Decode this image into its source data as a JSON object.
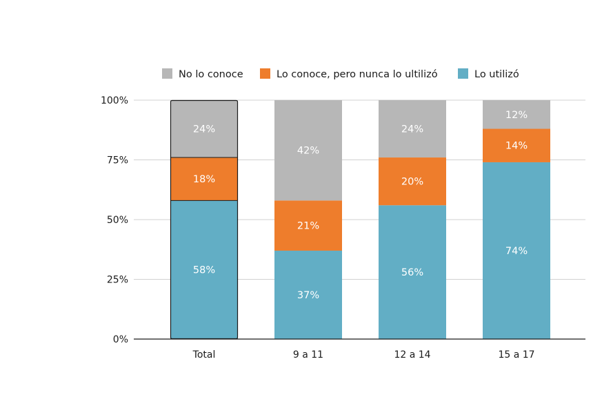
{
  "chart_data": {
    "type": "bar",
    "stacked": true,
    "categories": [
      "Total",
      "9 a 11",
      "12 a 14",
      "15 a 17"
    ],
    "series": [
      {
        "name": "Lo utilizó",
        "color": "#62aec5",
        "values": [
          58,
          37,
          56,
          74
        ],
        "labels": [
          "58%",
          "37%",
          "56%",
          "74%"
        ]
      },
      {
        "name": "Lo conoce, pero nunca lo ultilizó",
        "color": "#ee7d2c",
        "values": [
          18,
          21,
          20,
          14
        ],
        "labels": [
          "18%",
          "21%",
          "20%",
          "14%"
        ]
      },
      {
        "name": "No lo conoce",
        "color": "#b7b7b7",
        "values": [
          24,
          42,
          24,
          12
        ],
        "labels": [
          "24%",
          "42%",
          "24%",
          "12%"
        ]
      }
    ],
    "legend_order": [
      "No lo conoce",
      "Lo conoce, pero nunca lo ultilizó",
      "Lo utilizó"
    ],
    "y_ticks": [
      "0%",
      "25%",
      "50%",
      "75%",
      "100%"
    ],
    "ylim": [
      0,
      100
    ],
    "grid": true,
    "legend_position": "top",
    "highlighted_category": "Total",
    "title": "",
    "xlabel": "",
    "ylabel": ""
  }
}
